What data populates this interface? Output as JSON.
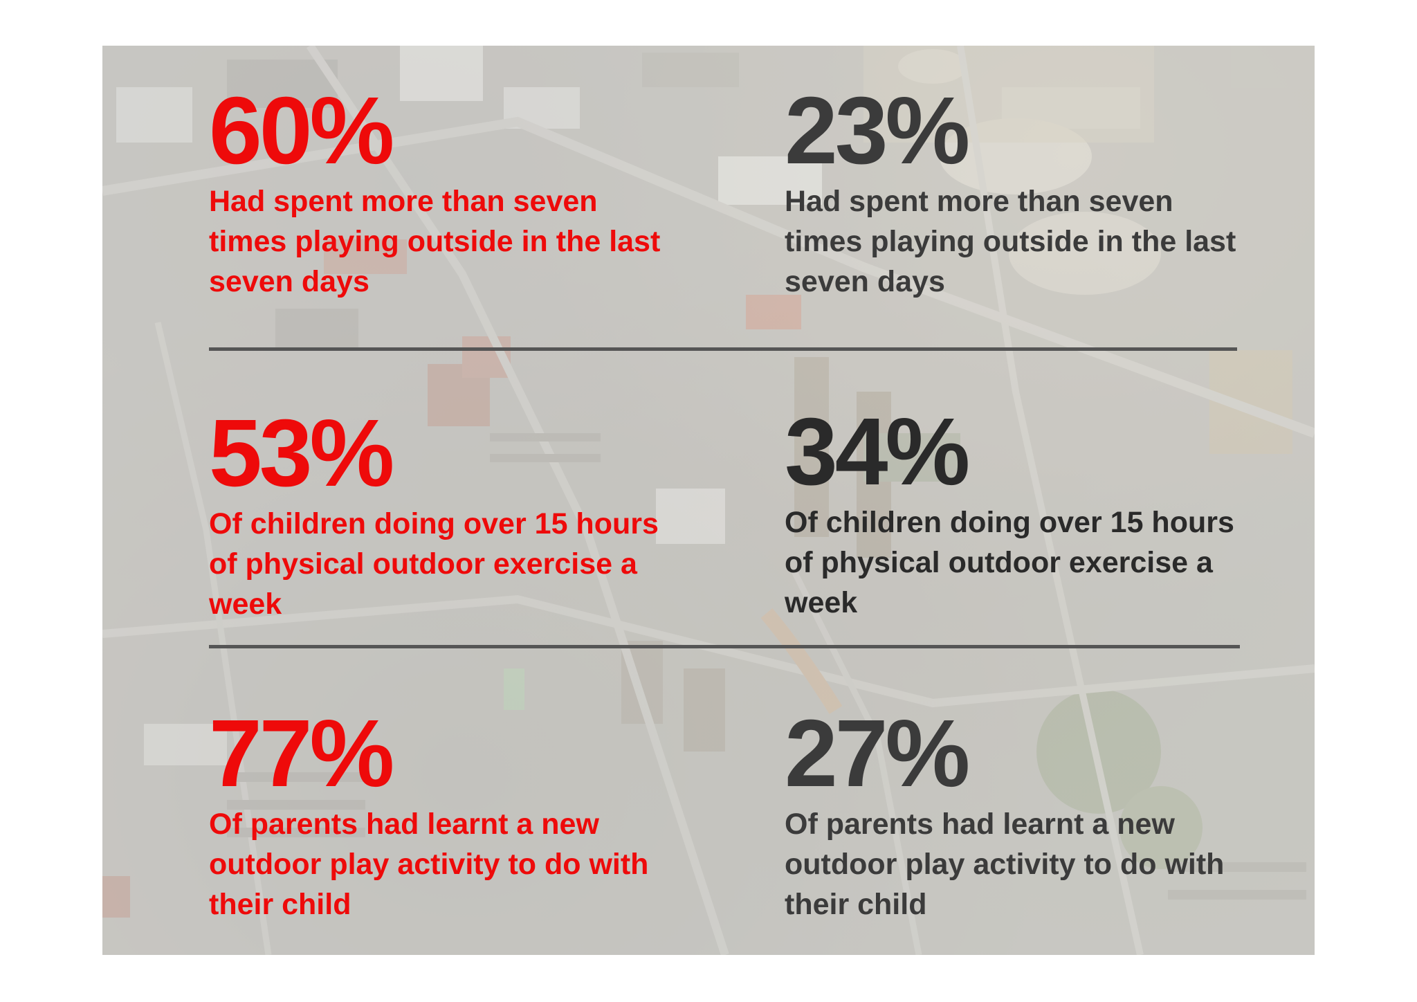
{
  "colors": {
    "accent_red": "#ee0a0a",
    "dark_gray": "#3b3b3b",
    "divider": "#555555"
  },
  "rows": [
    {
      "left": {
        "value": "60%",
        "text": "Had spent more than seven times playing outside in the last seven days"
      },
      "right": {
        "value": "23%",
        "text": "Had spent more than seven times playing outside in the last seven days"
      }
    },
    {
      "left": {
        "value": "53%",
        "text": "Of children doing over 15 hours of physical outdoor exercise a week"
      },
      "right": {
        "value": "34%",
        "text": "Of children doing over 15 hours of physical outdoor exercise a week"
      }
    },
    {
      "left": {
        "value": "77%",
        "text": "Of parents had learnt a new outdoor play activity to do with their child"
      },
      "right": {
        "value": "27%",
        "text": "Of parents had learnt a new outdoor play activity to do with their child"
      }
    }
  ]
}
